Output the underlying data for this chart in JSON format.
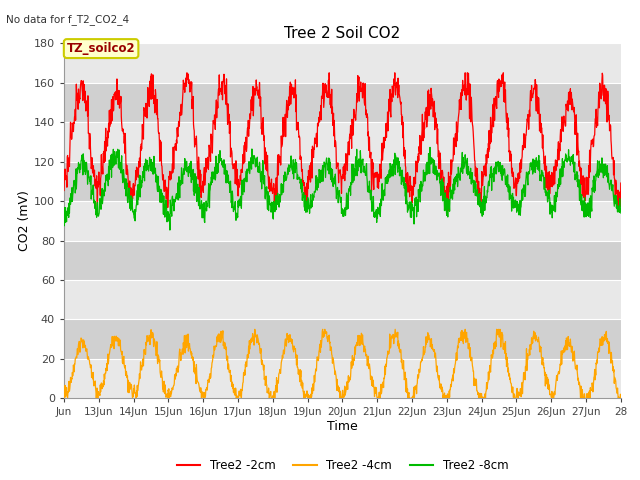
{
  "title": "Tree 2 Soil CO2",
  "subtitle": "No data for f_T2_CO2_4",
  "ylabel": "CO2 (mV)",
  "xlabel": "Time",
  "annotation": "TZ_soilco2",
  "ylim": [
    0,
    180
  ],
  "yticks": [
    0,
    20,
    40,
    60,
    80,
    100,
    120,
    140,
    160,
    180
  ],
  "x_tick_labels": [
    "Jun",
    "13Jun",
    "14Jun",
    "15Jun",
    "16Jun",
    "17Jun",
    "18Jun",
    "19Jun",
    "20Jun",
    "21Jun",
    "22Jun",
    "23Jun",
    "24Jun",
    "25Jun",
    "26Jun",
    "27Jun",
    "28"
  ],
  "legend_entries": [
    "Tree2 -2cm",
    "Tree2 -4cm",
    "Tree2 -8cm"
  ],
  "legend_colors": [
    "#ff0000",
    "#ffa500",
    "#00bb00"
  ],
  "line_color_2cm": "#ff0000",
  "line_color_4cm": "#ffa500",
  "line_color_8cm": "#00bb00",
  "bg_color": "#ffffff",
  "plot_bg_color": "#c8c8c8",
  "band_light": "#e8e8e8",
  "band_dark": "#d0d0d0",
  "grid_color": "#ffffff",
  "annotation_bg": "#ffffcc",
  "annotation_border": "#cccc00",
  "annotation_text_color": "#990000",
  "subtitle_color": "#333333",
  "tick_color": "#444444"
}
